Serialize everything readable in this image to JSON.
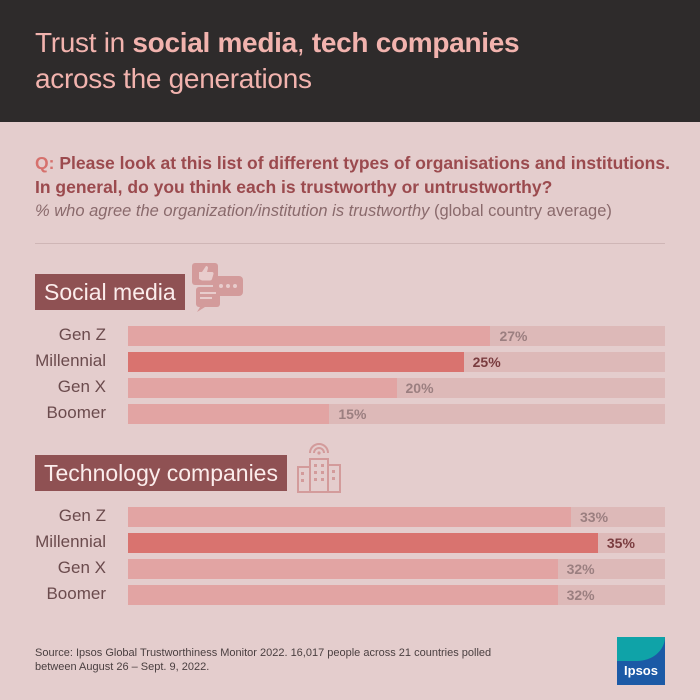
{
  "header": {
    "title_part1": "Trust in ",
    "title_bold1": "social media",
    "title_part2": ", ",
    "title_bold2": "tech companies",
    "title_line2": "across the generations"
  },
  "question": {
    "prefix": "Q:",
    "line1": " Please look at this list of different types of organisations and institutions.",
    "line2": "In general, do you think each is trustworthy or untrustworthy?",
    "note_italic": "% who agree the organization/institution is trustworthy",
    "note_plain": " (global country average)"
  },
  "chart_data": [
    {
      "type": "bar",
      "title": "Social media",
      "icon": "social-media-icon",
      "categories": [
        "Gen Z",
        "Millennial",
        "Gen X",
        "Boomer"
      ],
      "values": [
        27,
        25,
        20,
        15
      ],
      "value_labels": [
        "27%",
        "25%",
        "20%",
        "15%"
      ],
      "highlight": "Millennial",
      "orientation": "horizontal",
      "xlim": [
        0,
        40
      ]
    },
    {
      "type": "bar",
      "title": "Technology companies",
      "icon": "technology-companies-icon",
      "categories": [
        "Gen Z",
        "Millennial",
        "Gen X",
        "Boomer"
      ],
      "values": [
        33,
        35,
        32,
        32
      ],
      "value_labels": [
        "33%",
        "35%",
        "32%",
        "32%"
      ],
      "highlight": "Millennial",
      "orientation": "horizontal",
      "xlim": [
        0,
        40
      ]
    }
  ],
  "colors": {
    "header_bg": "#2e2b2b",
    "title": "#f2b3ae",
    "page_bg": "#e4cdcd",
    "bar": "#e2a4a3",
    "bar_highlight": "#d9736f",
    "track": "#ddb9b8",
    "section_label_bg": "#8f5153",
    "question_text": "#9b4a4e",
    "question_prefix": "#d6716d"
  },
  "footer": {
    "source_line1": "Source: Ipsos Global Trustworthiness Monitor 2022. 16,017 people across 21 countries polled",
    "source_line2": "between August 26 – Sept. 9, 2022.",
    "logo_text": "Ipsos"
  }
}
